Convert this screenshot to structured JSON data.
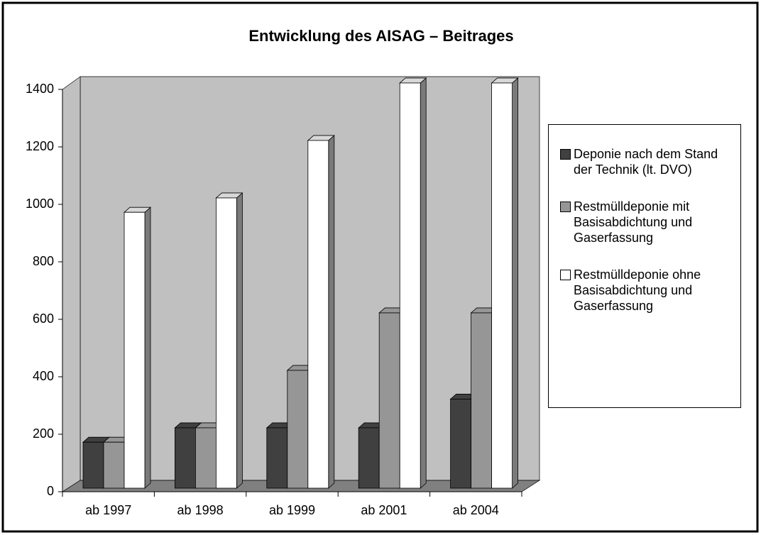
{
  "chart_data": {
    "type": "bar3d",
    "title": "Entwicklung des AISAG – Beitrages",
    "categories": [
      "ab 1997",
      "ab 1998",
      "ab 1999",
      "ab 2001",
      "ab 2004"
    ],
    "series": [
      {
        "name": "Deponie nach dem Stand der Technik (lt. DVO)",
        "color": "#404040",
        "values": [
          160,
          210,
          210,
          210,
          310
        ]
      },
      {
        "name": "Restmülldeponie mit Basisabdichtung und Gaserfassung",
        "color": "#969696",
        "values": [
          160,
          210,
          410,
          610,
          610
        ]
      },
      {
        "name": "Restmülldeponie ohne Basisabdichtung und Gaserfassung",
        "color": "#ffffff",
        "values": [
          960,
          1010,
          1210,
          1410,
          1410
        ]
      }
    ],
    "ylim": [
      0,
      1400
    ],
    "yticks": [
      0,
      200,
      400,
      600,
      800,
      1000,
      1200,
      1400
    ],
    "legend": "right",
    "grid": false
  }
}
